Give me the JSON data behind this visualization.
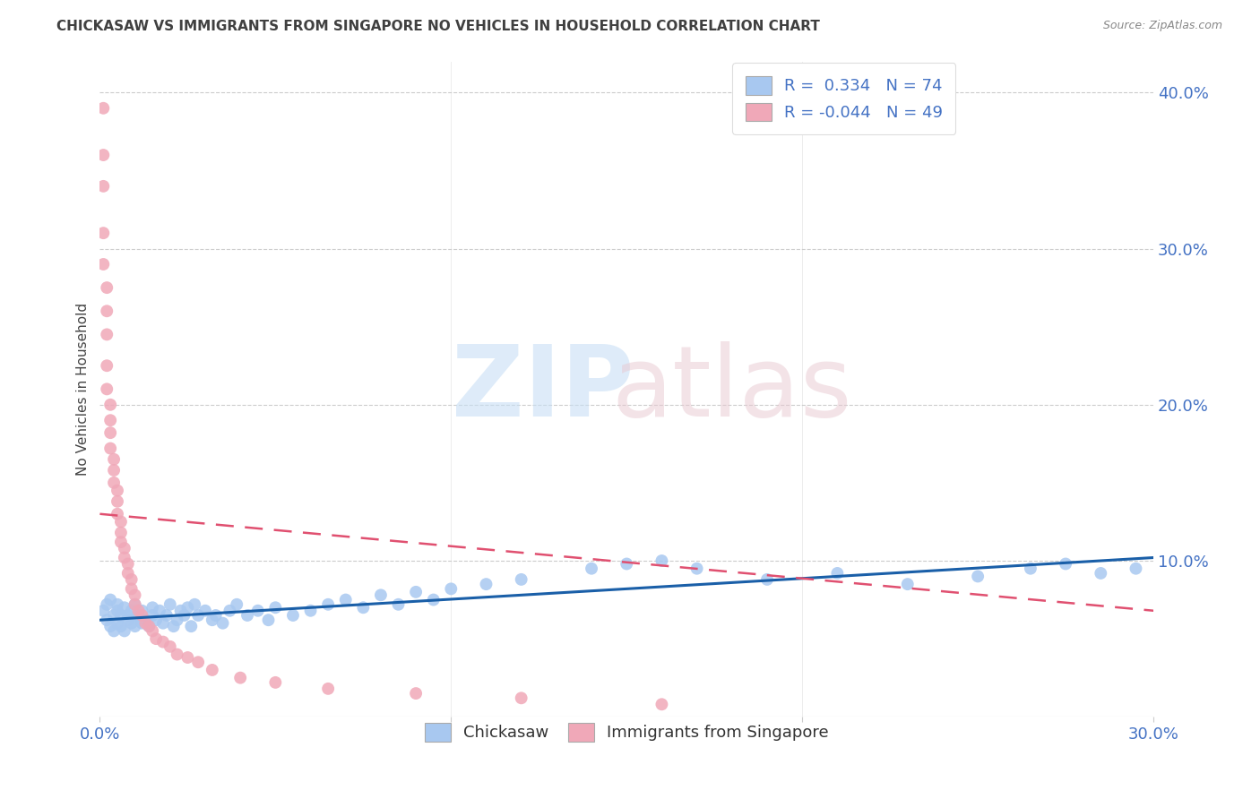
{
  "title": "CHICKASAW VS IMMIGRANTS FROM SINGAPORE NO VEHICLES IN HOUSEHOLD CORRELATION CHART",
  "source": "Source: ZipAtlas.com",
  "ylabel": "No Vehicles in Household",
  "xlim": [
    0.0,
    0.3
  ],
  "ylim": [
    0.0,
    0.42
  ],
  "blue_R": 0.334,
  "blue_N": 74,
  "pink_R": -0.044,
  "pink_N": 49,
  "blue_color": "#a8c8f0",
  "pink_color": "#f0a8b8",
  "blue_line_color": "#1a5fa8",
  "pink_line_color": "#e05070",
  "legend_text_color": "#4472c4",
  "blue_scatter_x": [
    0.001,
    0.002,
    0.002,
    0.003,
    0.003,
    0.004,
    0.004,
    0.005,
    0.005,
    0.005,
    0.006,
    0.006,
    0.007,
    0.007,
    0.008,
    0.008,
    0.009,
    0.009,
    0.01,
    0.01,
    0.011,
    0.012,
    0.012,
    0.013,
    0.014,
    0.015,
    0.015,
    0.016,
    0.017,
    0.018,
    0.019,
    0.02,
    0.021,
    0.022,
    0.023,
    0.024,
    0.025,
    0.026,
    0.027,
    0.028,
    0.03,
    0.032,
    0.033,
    0.035,
    0.037,
    0.039,
    0.042,
    0.045,
    0.048,
    0.05,
    0.055,
    0.06,
    0.065,
    0.07,
    0.075,
    0.08,
    0.085,
    0.09,
    0.095,
    0.1,
    0.11,
    0.12,
    0.14,
    0.15,
    0.16,
    0.17,
    0.19,
    0.21,
    0.23,
    0.25,
    0.265,
    0.275,
    0.285,
    0.295
  ],
  "blue_scatter_y": [
    0.068,
    0.062,
    0.072,
    0.058,
    0.075,
    0.065,
    0.055,
    0.06,
    0.068,
    0.072,
    0.058,
    0.065,
    0.07,
    0.055,
    0.065,
    0.062,
    0.06,
    0.068,
    0.058,
    0.072,
    0.065,
    0.06,
    0.068,
    0.062,
    0.058,
    0.07,
    0.065,
    0.062,
    0.068,
    0.06,
    0.065,
    0.072,
    0.058,
    0.062,
    0.068,
    0.065,
    0.07,
    0.058,
    0.072,
    0.065,
    0.068,
    0.062,
    0.065,
    0.06,
    0.068,
    0.072,
    0.065,
    0.068,
    0.062,
    0.07,
    0.065,
    0.068,
    0.072,
    0.075,
    0.07,
    0.078,
    0.072,
    0.08,
    0.075,
    0.082,
    0.085,
    0.088,
    0.095,
    0.098,
    0.1,
    0.095,
    0.088,
    0.092,
    0.085,
    0.09,
    0.095,
    0.098,
    0.092,
    0.095
  ],
  "pink_scatter_x": [
    0.001,
    0.001,
    0.001,
    0.001,
    0.001,
    0.002,
    0.002,
    0.002,
    0.002,
    0.002,
    0.003,
    0.003,
    0.003,
    0.003,
    0.004,
    0.004,
    0.004,
    0.005,
    0.005,
    0.005,
    0.006,
    0.006,
    0.006,
    0.007,
    0.007,
    0.008,
    0.008,
    0.009,
    0.009,
    0.01,
    0.01,
    0.011,
    0.012,
    0.013,
    0.014,
    0.015,
    0.016,
    0.018,
    0.02,
    0.022,
    0.025,
    0.028,
    0.032,
    0.04,
    0.05,
    0.065,
    0.09,
    0.12,
    0.16
  ],
  "pink_scatter_y": [
    0.39,
    0.36,
    0.34,
    0.31,
    0.29,
    0.275,
    0.26,
    0.245,
    0.225,
    0.21,
    0.2,
    0.19,
    0.182,
    0.172,
    0.165,
    0.158,
    0.15,
    0.145,
    0.138,
    0.13,
    0.125,
    0.118,
    0.112,
    0.108,
    0.102,
    0.098,
    0.092,
    0.088,
    0.082,
    0.078,
    0.072,
    0.068,
    0.065,
    0.06,
    0.058,
    0.055,
    0.05,
    0.048,
    0.045,
    0.04,
    0.038,
    0.035,
    0.03,
    0.025,
    0.022,
    0.018,
    0.015,
    0.012,
    0.008
  ],
  "blue_line_x": [
    0.0,
    0.3
  ],
  "blue_line_y_start": 0.062,
  "blue_line_y_end": 0.102,
  "pink_line_x": [
    0.0,
    0.3
  ],
  "pink_line_y_start": 0.13,
  "pink_line_y_end": 0.068,
  "xtick_positions": [
    0.0,
    0.1,
    0.2,
    0.3
  ],
  "xtick_labels": [
    "0.0%",
    "",
    "",
    "30.0%"
  ],
  "ytick_positions": [
    0.1,
    0.2,
    0.3,
    0.4
  ],
  "ytick_labels": [
    "10.0%",
    "20.0%",
    "30.0%",
    "40.0%"
  ]
}
